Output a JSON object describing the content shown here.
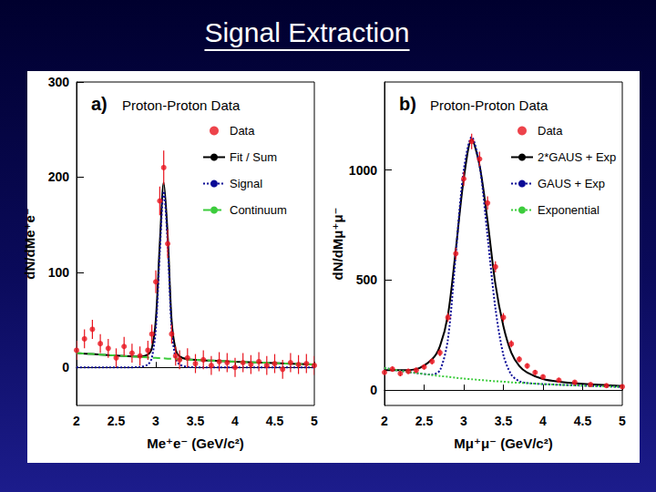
{
  "title": "Signal Extraction",
  "chart_data": [
    {
      "type": "line",
      "panel_label": "a)",
      "annotation": "Proton-Proton Data",
      "xlabel": "Me⁺e⁻ (GeV/c²)",
      "ylabel": "dN/dMe⁺e⁻",
      "xlim": [
        2,
        5
      ],
      "xticks": [
        2,
        2.5,
        3,
        3.5,
        4,
        4.5,
        5
      ],
      "ylim": [
        -40,
        300
      ],
      "yticks": [
        0,
        100,
        200,
        300
      ],
      "grid": false,
      "legend": "upper right",
      "series": [
        {
          "name": "Data",
          "type": "scatter",
          "color": "#e8141e",
          "marker": "circle",
          "x": [
            2.0,
            2.1,
            2.2,
            2.3,
            2.4,
            2.5,
            2.6,
            2.7,
            2.8,
            2.9,
            2.95,
            3.0,
            3.05,
            3.1,
            3.15,
            3.2,
            3.25,
            3.3,
            3.4,
            3.5,
            3.6,
            3.7,
            3.8,
            3.9,
            4.0,
            4.1,
            4.2,
            4.3,
            4.4,
            4.5,
            4.6,
            4.7,
            4.8,
            4.9,
            5.0
          ],
          "values": [
            18,
            30,
            40,
            25,
            20,
            10,
            22,
            15,
            12,
            18,
            35,
            90,
            175,
            210,
            130,
            35,
            12,
            8,
            10,
            4,
            8,
            2,
            6,
            5,
            0,
            5,
            3,
            6,
            2,
            4,
            -2,
            5,
            3,
            4,
            2
          ],
          "errors": [
            10,
            10,
            10,
            10,
            10,
            10,
            10,
            10,
            10,
            10,
            10,
            12,
            15,
            18,
            15,
            10,
            10,
            10,
            10,
            10,
            10,
            10,
            10,
            10,
            10,
            10,
            10,
            10,
            10,
            10,
            10,
            10,
            10,
            10,
            10
          ]
        },
        {
          "name": "Fit / Sum",
          "type": "line",
          "color": "#000000",
          "line_style": "solid",
          "x": [
            2.0,
            2.2,
            2.4,
            2.6,
            2.8,
            2.9,
            2.95,
            3.0,
            3.05,
            3.1,
            3.15,
            3.2,
            3.25,
            3.3,
            3.4,
            3.6,
            3.8,
            4.0,
            4.5,
            5.0
          ],
          "values": [
            15,
            14,
            13,
            12,
            11.5,
            13.5,
            20.2,
            50,
            129.7,
            194.5,
            139.2,
            49,
            18.8,
            11.6,
            8.7,
            7.5,
            6.8,
            6,
            4.5,
            3
          ]
        },
        {
          "name": "Signal",
          "type": "line",
          "color": "#0a0a96",
          "line_style": "dotted",
          "x": [
            2.0,
            2.2,
            2.4,
            2.6,
            2.8,
            2.9,
            2.95,
            3.0,
            3.05,
            3.1,
            3.15,
            3.2,
            3.25,
            3.3,
            3.4,
            3.6,
            3.8,
            4.0,
            4.5,
            5.0
          ],
          "values": [
            0,
            0,
            0,
            0,
            0.5,
            3,
            10,
            40,
            120,
            185,
            130,
            40,
            10,
            3,
            0.5,
            0,
            0,
            0,
            0,
            0
          ]
        },
        {
          "name": "Continuum",
          "type": "line",
          "color": "#3ccc3c",
          "line_style": "dashed",
          "x": [
            2.0,
            2.2,
            2.4,
            2.6,
            2.8,
            2.9,
            2.95,
            3.0,
            3.05,
            3.1,
            3.15,
            3.2,
            3.25,
            3.3,
            3.4,
            3.6,
            3.8,
            4.0,
            4.5,
            5.0
          ],
          "values": [
            15,
            14,
            13,
            12,
            11,
            10.5,
            10.2,
            10,
            9.7,
            9.5,
            9.2,
            9,
            8.8,
            8.6,
            8.2,
            7.5,
            6.8,
            6,
            4.5,
            3
          ]
        }
      ]
    },
    {
      "type": "line",
      "panel_label": "b)",
      "annotation": "Proton-Proton Data",
      "xlabel": "Mμ⁺μ⁻ (GeV/c²)",
      "ylabel": "dN/dMμ⁺μ⁻",
      "xlim": [
        2,
        5
      ],
      "xticks": [
        2,
        2.5,
        3,
        3.5,
        4,
        4.5,
        5
      ],
      "ylim": [
        -70,
        1400
      ],
      "yticks": [
        0,
        500,
        1000
      ],
      "grid": false,
      "legend": "upper right",
      "series": [
        {
          "name": "Data",
          "type": "scatter",
          "color": "#e8141e",
          "marker": "circle",
          "x": [
            2.0,
            2.1,
            2.2,
            2.3,
            2.4,
            2.5,
            2.6,
            2.7,
            2.8,
            2.9,
            3.0,
            3.1,
            3.2,
            3.3,
            3.4,
            3.5,
            3.6,
            3.7,
            3.8,
            3.9,
            4.0,
            4.2,
            4.4,
            4.6,
            4.8,
            5.0
          ],
          "values": [
            80,
            95,
            75,
            85,
            90,
            105,
            130,
            170,
            330,
            620,
            960,
            1130,
            1050,
            850,
            560,
            330,
            210,
            140,
            110,
            80,
            60,
            45,
            35,
            25,
            20,
            15
          ],
          "errors": [
            12,
            12,
            12,
            12,
            12,
            12,
            14,
            16,
            20,
            26,
            32,
            35,
            33,
            30,
            25,
            20,
            16,
            14,
            12,
            12,
            10,
            10,
            8,
            8,
            8,
            8
          ]
        },
        {
          "name": "2*GAUS + Exp",
          "type": "line",
          "color": "#000000",
          "line_style": "solid",
          "x": [
            2.0,
            2.2,
            2.4,
            2.6,
            2.7,
            2.8,
            2.9,
            3.0,
            3.1,
            3.2,
            3.3,
            3.4,
            3.5,
            3.6,
            3.7,
            3.8,
            4.0,
            4.2,
            4.5,
            5.0
          ],
          "values": [
            90,
            90,
            95,
            140,
            200,
            340,
            640,
            960,
            1140,
            1020,
            770,
            480,
            290,
            170,
            110,
            80,
            50,
            38,
            28,
            18
          ]
        },
        {
          "name": "GAUS + Exp",
          "type": "line",
          "color": "#0a0a96",
          "line_style": "dotted",
          "x": [
            2.0,
            2.2,
            2.4,
            2.6,
            2.7,
            2.8,
            2.9,
            3.0,
            3.1,
            3.2,
            3.3,
            3.4,
            3.5,
            3.6,
            3.7,
            3.8,
            4.0,
            4.2,
            4.5,
            5.0
          ],
          "values": [
            100,
            88,
            77,
            70,
            90,
            230,
            620,
            1000,
            1150,
            1020,
            700,
            370,
            160,
            70,
            40,
            32,
            27,
            24,
            20,
            14
          ]
        },
        {
          "name": "Exponential",
          "type": "line",
          "color": "#3ccc3c",
          "line_style": "dotted",
          "x": [
            2.0,
            2.2,
            2.4,
            2.6,
            2.7,
            2.8,
            2.9,
            3.0,
            3.1,
            3.2,
            3.3,
            3.4,
            3.5,
            3.6,
            3.7,
            3.8,
            4.0,
            4.2,
            4.5,
            5.0
          ],
          "values": [
            100,
            88,
            77,
            68,
            64,
            60,
            56,
            52,
            49,
            46,
            43,
            40,
            38,
            35,
            33,
            31,
            27,
            24,
            20,
            14
          ]
        }
      ]
    }
  ]
}
